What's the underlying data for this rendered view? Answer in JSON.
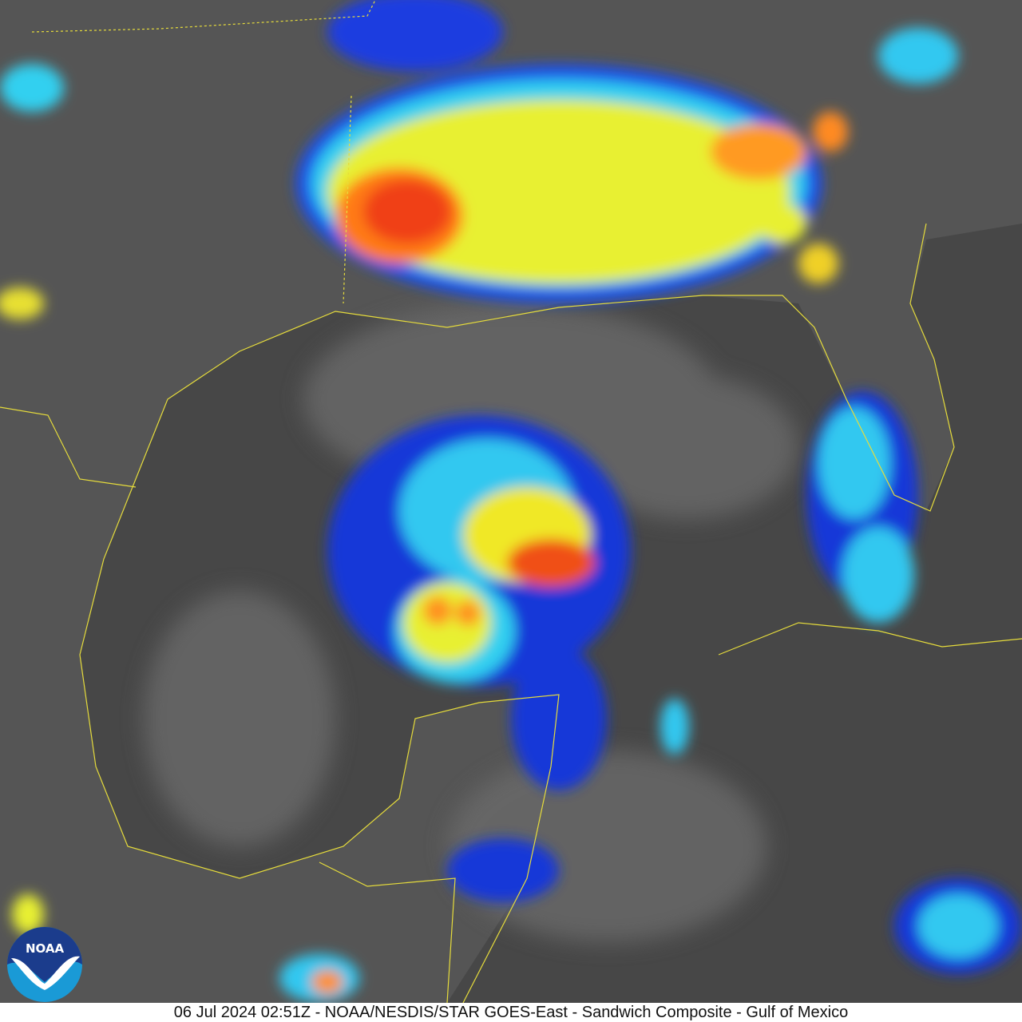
{
  "caption": "06 Jul 2024 02:51Z - NOAA/NESDIS/STAR GOES-East - Sandwich Composite - Gulf of Mexico",
  "logo": {
    "text": "NOAA",
    "colors": {
      "dark": "#1b3c8c",
      "light": "#1a9ad6"
    }
  },
  "colors": {
    "background": "#4a4a4a",
    "borders": "#e6dc3c",
    "cold_tops": [
      "#1428d2",
      "#28c8f0",
      "#f0f028",
      "#ff8c14",
      "#f03c14"
    ]
  }
}
